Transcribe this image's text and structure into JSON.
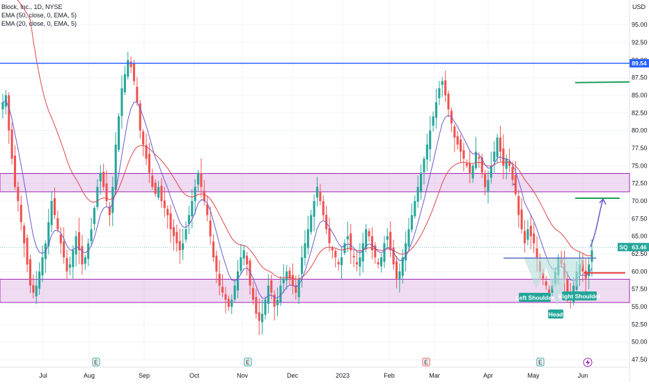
{
  "legend": {
    "title": "Block, Inc., 1D, NYSE",
    "ema50": "EMA (50, close, 0, EMA, 5)",
    "ema20": "EMA (20, close, 0, EMA, 5)"
  },
  "colors": {
    "up": "#26a69a",
    "down": "#ef5350",
    "ema50": "#e0444a",
    "ema20": "#6a5acd",
    "resistance_line": "#2962ff",
    "zone_fill": "#e1bee7",
    "zone_border": "#9c27b0",
    "target_green": "#1e9e5a",
    "stop_red": "#e53935",
    "neckline": "#5c6bc0",
    "pattern_fill": "#b2dfdb",
    "label_bg": "#26a69a",
    "price_badge": "#26a69a"
  },
  "chart_data": {
    "type": "candlestick",
    "title": "Block, Inc., 1D, NYSE",
    "y_unit": "USD",
    "ylim": [
      46,
      100
    ],
    "y_ticks": [
      "47.50",
      "50.00",
      "52.50",
      "55.00",
      "57.50",
      "60.00",
      "62.50",
      "65.00",
      "67.50",
      "70.00",
      "72.50",
      "75.00",
      "77.50",
      "80.00",
      "82.50",
      "85.00",
      "87.50",
      "90.00",
      "92.50",
      "95.00"
    ],
    "x_labels": [
      "Jul",
      "Aug",
      "Sep",
      "Oct",
      "Nov",
      "Dec",
      "2023",
      "Feb",
      "Mar",
      "Apr",
      "May",
      "Jun"
    ],
    "earnings_markers": [
      "E",
      "E",
      "E",
      "E"
    ],
    "dividend_marker": "lightning",
    "resistance_level": "89.54",
    "current_price": "63.46",
    "symbol": "SQ",
    "zones": [
      {
        "from": 71.3,
        "to": 73.9
      },
      {
        "from": 55.6,
        "to": 58.9
      }
    ],
    "pattern_labels": [
      "Left Shoulder",
      "Head",
      "Right Shoulder"
    ],
    "target_level": 70.4,
    "upper_target_level": 86.8,
    "stop_level": 59.8,
    "neckline_level": 61.9,
    "closes": [
      84,
      85,
      80,
      76,
      72,
      70,
      67,
      64,
      61,
      58,
      57,
      58,
      60,
      62,
      64,
      67,
      70,
      68,
      66,
      64,
      62,
      60,
      61,
      63,
      65,
      63,
      61,
      62,
      64,
      66,
      69,
      72,
      74,
      72,
      70,
      68,
      72,
      78,
      82,
      86,
      88,
      90,
      89,
      87,
      84,
      80,
      78,
      76,
      74,
      72,
      71,
      72,
      70,
      69,
      68,
      66,
      65,
      64,
      63,
      64,
      66,
      68,
      70,
      72,
      74,
      72,
      70,
      68,
      65,
      62,
      60,
      58,
      57,
      56,
      55,
      56,
      58,
      60,
      62,
      63,
      61,
      58,
      56,
      54,
      53,
      54,
      56,
      58,
      57,
      55,
      56,
      58,
      59,
      60,
      59,
      58,
      57,
      59,
      62,
      64,
      66,
      68,
      70,
      72,
      70,
      68,
      66,
      64,
      63,
      62,
      61,
      62,
      64,
      65,
      63,
      62,
      61,
      62,
      64,
      66,
      65,
      63,
      62,
      61,
      62,
      64,
      65,
      63,
      61,
      59,
      60,
      62,
      64,
      66,
      68,
      70,
      72,
      74,
      76,
      78,
      80,
      82,
      84,
      86,
      87,
      85,
      83,
      81,
      79,
      78,
      77,
      76,
      75,
      74,
      75,
      77,
      76,
      74,
      72,
      73,
      75,
      77,
      79,
      77,
      75,
      76,
      75,
      73,
      71,
      68,
      66,
      64,
      66,
      65,
      64,
      62,
      60,
      59,
      58,
      57,
      58,
      60,
      62,
      61,
      59,
      57,
      56,
      58,
      60,
      61,
      60,
      59,
      61,
      63
    ]
  },
  "price_axis": {
    "currency": "USD",
    "resistance_badge": "89.54",
    "symbol_badge": "SQ",
    "price_badge": "63.46"
  }
}
